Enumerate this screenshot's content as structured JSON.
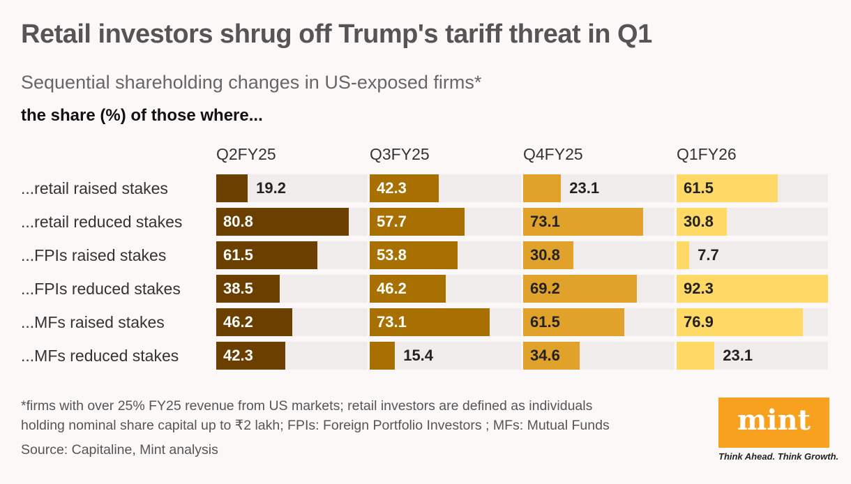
{
  "title": "Retail investors shrug off Trump's tariff threat in Q1",
  "subtitle": "Sequential shareholding changes in US-exposed firms*",
  "subtitle2": "the share (%) of those where...",
  "footnote_line1": "*firms with over 25% FY25 revenue from US markets; retail investors are defined as individuals",
  "footnote_line2": "holding nominal share capital up to ₹2 lakh; FPIs: Foreign Portfolio Investors ; MFs: Mutual Funds",
  "source": "Source: Capitaline, Mint analysis",
  "logo": {
    "text": "mint",
    "tagline": "Think Ahead. Think Growth.",
    "color": "#f7a11f"
  },
  "chart_data": {
    "type": "bar",
    "orientation": "horizontal",
    "unit": "%",
    "categories": [
      "...retail raised stakes",
      "...retail reduced stakes",
      "...FPIs raised stakes",
      "...FPIs reduced stakes",
      "...MFs raised stakes",
      "...MFs reduced stakes"
    ],
    "series": [
      {
        "name": "Q2FY25",
        "color": "#6b3f00",
        "text_color": "#ffffff",
        "values": [
          19.2,
          80.8,
          61.5,
          38.5,
          46.2,
          42.3
        ]
      },
      {
        "name": "Q3FY25",
        "color": "#a87000",
        "text_color": "#ffffff",
        "values": [
          42.3,
          57.7,
          53.8,
          46.2,
          73.1,
          15.4
        ]
      },
      {
        "name": "Q4FY25",
        "color": "#e0a22a",
        "text_color": "#222222",
        "values": [
          23.1,
          73.1,
          30.8,
          69.2,
          61.5,
          34.6
        ]
      },
      {
        "name": "Q1FY26",
        "color": "#ffd966",
        "text_color": "#222222",
        "values": [
          61.5,
          30.8,
          7.7,
          92.3,
          76.9,
          23.1
        ]
      }
    ],
    "xlim": [
      0,
      92.3
    ],
    "grid": false,
    "legend": "none"
  }
}
